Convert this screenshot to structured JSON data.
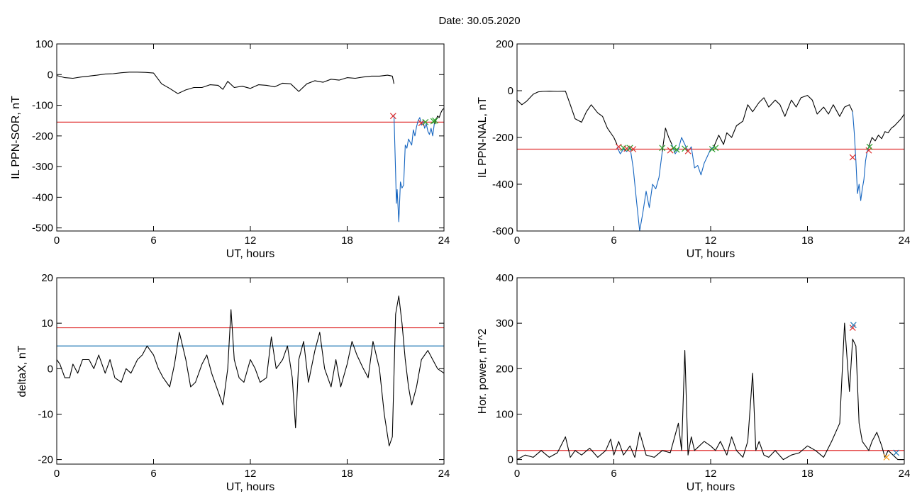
{
  "figure": {
    "title": "Date:  30.05.2020"
  },
  "chart_data": [
    {
      "id": "p1",
      "type": "line",
      "xlabel": "UT, hours",
      "ylabel": "IL PPN-SOR, nT",
      "xlim": [
        0,
        24
      ],
      "ylim": [
        -510,
        100
      ],
      "xticks": [
        0,
        6,
        12,
        18,
        24
      ],
      "yticks": [
        -500,
        -400,
        -300,
        -200,
        -100,
        0,
        100
      ],
      "series": [
        {
          "color": "#000000",
          "x": [
            0,
            0.5,
            1,
            1.5,
            2,
            2.5,
            3,
            3.5,
            4,
            4.5,
            5,
            5.5,
            6,
            6.5,
            7,
            7.5,
            8,
            8.5,
            9,
            9.5,
            10,
            10.3,
            10.6,
            11,
            11.5,
            12,
            12.5,
            13,
            13.5,
            14,
            14.5,
            15,
            15.5,
            16,
            16.5,
            17,
            17.5,
            18,
            18.5,
            19,
            19.5,
            20,
            20.5,
            20.8,
            20.9
          ],
          "y": [
            -3,
            -10,
            -12,
            -8,
            -5,
            -2,
            2,
            3,
            6,
            8,
            8,
            7,
            5,
            -30,
            -45,
            -62,
            -50,
            -42,
            -42,
            -33,
            -35,
            -48,
            -22,
            -42,
            -38,
            -45,
            -33,
            -35,
            -40,
            -28,
            -30,
            -55,
            -30,
            -20,
            -25,
            -15,
            -18,
            -10,
            -12,
            -8,
            -5,
            -5,
            -2,
            -5,
            -30
          ]
        },
        {
          "color": "#1565c0",
          "x": [
            20.9,
            21,
            21.05,
            21.1,
            21.2,
            21.3,
            21.4,
            21.5,
            21.6,
            21.7,
            21.8,
            21.9,
            22,
            22.1,
            22.2,
            22.3,
            22.4,
            22.5,
            22.6,
            22.7,
            22.8,
            22.9,
            23,
            23.1,
            23.2,
            23.3,
            23.4
          ],
          "y": [
            -130,
            -320,
            -420,
            -375,
            -480,
            -350,
            -370,
            -360,
            -230,
            -240,
            -210,
            -220,
            -230,
            -180,
            -200,
            -170,
            -150,
            -140,
            -165,
            -150,
            -175,
            -160,
            -185,
            -195,
            -175,
            -200,
            -160
          ]
        },
        {
          "color": "#000000",
          "x": [
            23.4,
            23.5,
            23.6,
            23.7,
            23.8,
            23.9,
            24
          ],
          "y": [
            -160,
            -150,
            -135,
            -140,
            -125,
            -115,
            -110
          ]
        }
      ],
      "hlines": [
        {
          "y": -155,
          "color": "#e03030"
        }
      ],
      "markers": [
        {
          "x": 20.85,
          "y": -135,
          "color": "#e03030"
        },
        {
          "x": 22.6,
          "y": -158,
          "color": "#e03030"
        },
        {
          "x": 22.85,
          "y": -155,
          "color": "#2ca02c"
        },
        {
          "x": 23.35,
          "y": -152,
          "color": "#2ca02c"
        },
        {
          "x": 23.45,
          "y": -150,
          "color": "#2ca02c"
        }
      ]
    },
    {
      "id": "p2",
      "type": "line",
      "xlabel": "UT, hours",
      "ylabel": "IL PPN-NAL, nT",
      "xlim": [
        0,
        24
      ],
      "ylim": [
        -600,
        200
      ],
      "xticks": [
        0,
        6,
        12,
        18,
        24
      ],
      "yticks": [
        -600,
        -400,
        -200,
        0,
        200
      ],
      "series": [
        {
          "color": "#000000",
          "x": [
            0,
            0.3,
            0.6,
            1,
            1.3,
            1.6,
            2,
            2.5,
            3,
            3.3,
            3.6,
            4,
            4.3,
            4.6,
            5,
            5.3,
            5.6,
            6,
            6.2
          ],
          "y": [
            -40,
            -60,
            -45,
            -15,
            -5,
            -3,
            -2,
            -3,
            -2,
            -60,
            -120,
            -135,
            -90,
            -60,
            -95,
            -110,
            -160,
            -200,
            -230
          ]
        },
        {
          "color": "#1565c0",
          "x": [
            6.2,
            6.4,
            6.6,
            6.8,
            7,
            7.2,
            7.4,
            7.6,
            7.8,
            8,
            8.2,
            8.4,
            8.6,
            8.8,
            9
          ],
          "y": [
            -240,
            -270,
            -250,
            -260,
            -240,
            -330,
            -470,
            -600,
            -520,
            -430,
            -500,
            -400,
            -420,
            -370,
            -260
          ]
        },
        {
          "color": "#000000",
          "x": [
            9,
            9.2,
            9.4,
            9.6
          ],
          "y": [
            -260,
            -160,
            -200,
            -230
          ]
        },
        {
          "color": "#1565c0",
          "x": [
            9.6,
            9.8,
            10,
            10.2,
            10.4,
            10.6,
            10.8,
            11,
            11.2,
            11.4,
            11.6,
            11.8,
            12,
            12.2
          ],
          "y": [
            -230,
            -270,
            -250,
            -200,
            -230,
            -260,
            -240,
            -330,
            -320,
            -360,
            -310,
            -280,
            -250,
            -240
          ]
        },
        {
          "color": "#000000",
          "x": [
            12.2,
            12.5,
            12.8,
            13,
            13.3,
            13.6,
            14,
            14.3,
            14.6,
            15,
            15.3,
            15.6,
            16,
            16.3,
            16.6,
            17,
            17.3,
            17.6,
            18,
            18.3,
            18.6,
            19,
            19.3,
            19.6,
            20,
            20.3,
            20.6,
            20.8
          ],
          "y": [
            -240,
            -190,
            -230,
            -180,
            -200,
            -150,
            -130,
            -60,
            -90,
            -50,
            -30,
            -70,
            -40,
            -60,
            -110,
            -40,
            -70,
            -30,
            -20,
            -40,
            -100,
            -70,
            -100,
            -60,
            -110,
            -70,
            -60,
            -90
          ]
        },
        {
          "color": "#1565c0",
          "x": [
            20.8,
            20.9,
            21,
            21.1,
            21.2,
            21.3,
            21.4,
            21.5,
            21.6,
            21.7,
            21.8
          ],
          "y": [
            -90,
            -180,
            -300,
            -440,
            -400,
            -470,
            -420,
            -380,
            -300,
            -260,
            -240
          ]
        },
        {
          "color": "#000000",
          "x": [
            21.8,
            22,
            22.2,
            22.4,
            22.6,
            22.8,
            23,
            23.2,
            23.4,
            23.6,
            23.8,
            24
          ],
          "y": [
            -240,
            -200,
            -215,
            -190,
            -205,
            -175,
            -180,
            -160,
            -150,
            -135,
            -120,
            -100
          ]
        }
      ],
      "hlines": [
        {
          "y": -250,
          "color": "#e03030"
        }
      ],
      "markers": [
        {
          "x": 6.3,
          "y": -240,
          "color": "#e03030"
        },
        {
          "x": 6.6,
          "y": -245,
          "color": "#2ca02c"
        },
        {
          "x": 6.8,
          "y": -248,
          "color": "#e03030"
        },
        {
          "x": 7.0,
          "y": -245,
          "color": "#2ca02c"
        },
        {
          "x": 7.2,
          "y": -250,
          "color": "#e03030"
        },
        {
          "x": 9.0,
          "y": -245,
          "color": "#2ca02c"
        },
        {
          "x": 9.5,
          "y": -255,
          "color": "#e03030"
        },
        {
          "x": 9.7,
          "y": -245,
          "color": "#2ca02c"
        },
        {
          "x": 9.9,
          "y": -252,
          "color": "#2ca02c"
        },
        {
          "x": 10.4,
          "y": -248,
          "color": "#2ca02c"
        },
        {
          "x": 10.6,
          "y": -258,
          "color": "#e03030"
        },
        {
          "x": 12.1,
          "y": -250,
          "color": "#2ca02c"
        },
        {
          "x": 12.3,
          "y": -245,
          "color": "#2ca02c"
        },
        {
          "x": 20.8,
          "y": -285,
          "color": "#e03030"
        },
        {
          "x": 21.8,
          "y": -255,
          "color": "#e03030"
        },
        {
          "x": 21.85,
          "y": -240,
          "color": "#2ca02c"
        }
      ]
    },
    {
      "id": "p3",
      "type": "line",
      "xlabel": "UT, hours",
      "ylabel": "deltaX, nT",
      "xlim": [
        0,
        24
      ],
      "ylim": [
        -21,
        20
      ],
      "xticks": [
        0,
        6,
        12,
        18,
        24
      ],
      "yticks": [
        -20,
        -10,
        0,
        10,
        20
      ],
      "series": [
        {
          "color": "#000000",
          "x": [
            0,
            0.2,
            0.5,
            0.8,
            1,
            1.3,
            1.6,
            2,
            2.3,
            2.6,
            3,
            3.3,
            3.6,
            4,
            4.3,
            4.6,
            5,
            5.3,
            5.6,
            6,
            6.3,
            6.6,
            7,
            7.3,
            7.6,
            8,
            8.3,
            8.6,
            9,
            9.3,
            9.6,
            10,
            10.3,
            10.6,
            10.8,
            11,
            11.3,
            11.6,
            12,
            12.3,
            12.6,
            13,
            13.3,
            13.6,
            14,
            14.3,
            14.6,
            14.8,
            15,
            15.3,
            15.6,
            16,
            16.3,
            16.6,
            17,
            17.3,
            17.6,
            18,
            18.3,
            18.6,
            19,
            19.3,
            19.6,
            20,
            20.3,
            20.6,
            20.8,
            21,
            21.2,
            21.4,
            21.6,
            21.8,
            22,
            22.3,
            22.6,
            23,
            23.3,
            23.6,
            24
          ],
          "y": [
            2,
            1,
            -2,
            -2,
            1,
            -1,
            2,
            2,
            0,
            3,
            -1,
            2,
            -2,
            -3,
            0,
            -1,
            2,
            3,
            5,
            3,
            0,
            -2,
            -4,
            1,
            8,
            2,
            -4,
            -3,
            1,
            3,
            -1,
            -5,
            -8,
            0,
            13,
            2,
            -2,
            -3,
            2,
            0,
            -3,
            -2,
            7,
            0,
            2,
            5,
            -2,
            -13,
            2,
            6,
            -3,
            4,
            8,
            0,
            -4,
            2,
            -4,
            1,
            6,
            3,
            0,
            -2,
            6,
            0,
            -10,
            -17,
            -15,
            12,
            16,
            10,
            2,
            -4,
            -8,
            -4,
            2,
            4,
            2,
            0,
            -1
          ]
        }
      ],
      "hlines": [
        {
          "y": 9,
          "color": "#e03030"
        },
        {
          "y": 5,
          "color": "#1f77b4"
        }
      ],
      "markers": []
    },
    {
      "id": "p4",
      "type": "line",
      "xlabel": "UT, hours",
      "ylabel": "Hor. power, nT^2",
      "xlim": [
        0,
        24
      ],
      "ylim": [
        -10,
        400
      ],
      "xticks": [
        0,
        6,
        12,
        18,
        24
      ],
      "yticks": [
        0,
        100,
        200,
        300,
        400
      ],
      "series": [
        {
          "color": "#000000",
          "x": [
            0,
            0.5,
            1,
            1.5,
            2,
            2.5,
            3,
            3.3,
            3.6,
            4,
            4.5,
            5,
            5.5,
            5.8,
            6,
            6.3,
            6.6,
            7,
            7.3,
            7.6,
            8,
            8.5,
            9,
            9.5,
            10,
            10.2,
            10.4,
            10.6,
            10.8,
            11,
            11.3,
            11.6,
            12,
            12.3,
            12.6,
            13,
            13.3,
            13.6,
            14,
            14.3,
            14.6,
            14.8,
            15,
            15.3,
            15.6,
            16,
            16.5,
            17,
            17.5,
            18,
            18.5,
            19,
            19.5,
            20,
            20.3,
            20.6,
            20.8,
            21,
            21.2,
            21.4,
            21.6,
            21.8,
            22,
            22.3,
            22.6,
            22.8,
            23,
            23.3,
            23.6,
            24
          ],
          "y": [
            0,
            10,
            5,
            20,
            5,
            15,
            50,
            5,
            20,
            10,
            25,
            5,
            20,
            45,
            10,
            40,
            10,
            30,
            5,
            60,
            10,
            5,
            20,
            15,
            80,
            20,
            240,
            10,
            50,
            20,
            30,
            40,
            30,
            20,
            40,
            10,
            50,
            20,
            5,
            40,
            190,
            20,
            40,
            10,
            5,
            20,
            0,
            10,
            15,
            30,
            20,
            5,
            40,
            80,
            300,
            150,
            265,
            250,
            80,
            40,
            30,
            20,
            40,
            60,
            30,
            5,
            20,
            10,
            0,
            0
          ]
        }
      ],
      "hlines": [
        {
          "y": 20,
          "color": "#e03030"
        }
      ],
      "markers": [
        {
          "x": 20.8,
          "y": 290,
          "color": "#e03030"
        },
        {
          "x": 20.85,
          "y": 296,
          "color": "#1f77b4"
        },
        {
          "x": 22.9,
          "y": 5,
          "color": "#ff9900"
        },
        {
          "x": 23.5,
          "y": 15,
          "color": "#1f77b4"
        }
      ]
    }
  ]
}
